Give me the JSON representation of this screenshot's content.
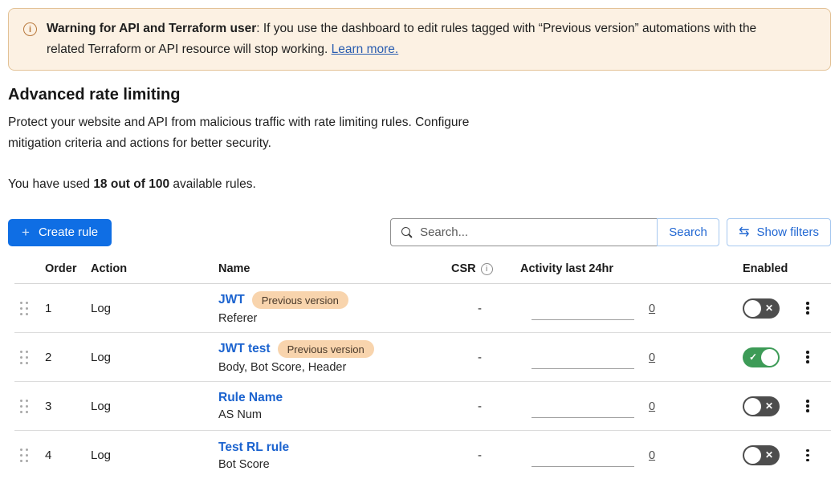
{
  "banner": {
    "icon": "info-circle-icon",
    "icon_glyph": "i",
    "title_bold": "Warning for API and Terraform user",
    "text": ": If you use the dashboard to edit rules tagged with “Previous version” automations with the related Terraform or API resource will stop working. ",
    "link_label": "Learn more."
  },
  "page": {
    "title": "Advanced rate limiting",
    "description": "Protect your website and API from malicious traffic with rate limiting rules. Configure mitigation criteria and actions for better security.",
    "usage_prefix": "You have used ",
    "usage_bold": "18 out of 100",
    "usage_suffix": " available rules."
  },
  "toolbar": {
    "create_button": "Create rule",
    "search_placeholder": "Search...",
    "search_button": "Search",
    "show_filters_button": "Show filters"
  },
  "icons": {
    "create_plus": "+",
    "show_filters_arrows": "⇆",
    "toggle_on_check": "✓",
    "toggle_off_x": "✕"
  },
  "table": {
    "headers": {
      "order": "Order",
      "action": "Action",
      "name": "Name",
      "csr": "CSR",
      "activity": "Activity last 24hr",
      "enabled": "Enabled"
    },
    "rows": [
      {
        "order": "1",
        "action": "Log",
        "name": "JWT",
        "badge": "Previous version",
        "criteria": "Referer",
        "csr": "-",
        "activity_count": "0",
        "enabled": false
      },
      {
        "order": "2",
        "action": "Log",
        "name": "JWT test",
        "badge": "Previous version",
        "criteria": "Body, Bot Score, Header",
        "csr": "-",
        "activity_count": "0",
        "enabled": true
      },
      {
        "order": "3",
        "action": "Log",
        "name": "Rule Name",
        "badge": null,
        "criteria": "AS Num",
        "csr": "-",
        "activity_count": "0",
        "enabled": false
      },
      {
        "order": "4",
        "action": "Log",
        "name": "Test RL rule",
        "badge": null,
        "criteria": "Bot Score",
        "csr": "-",
        "activity_count": "0",
        "enabled": false
      }
    ]
  },
  "colors": {
    "primary_button": "#0f6ee4",
    "link_blue": "#1b63cf",
    "secondary_button_text": "#2268d3",
    "banner_bg": "#fcf1e3",
    "banner_border": "#e3c296",
    "badge_bg": "#f8d4ad",
    "toggle_on": "#3d9b57",
    "toggle_off": "#4d4d4d"
  }
}
